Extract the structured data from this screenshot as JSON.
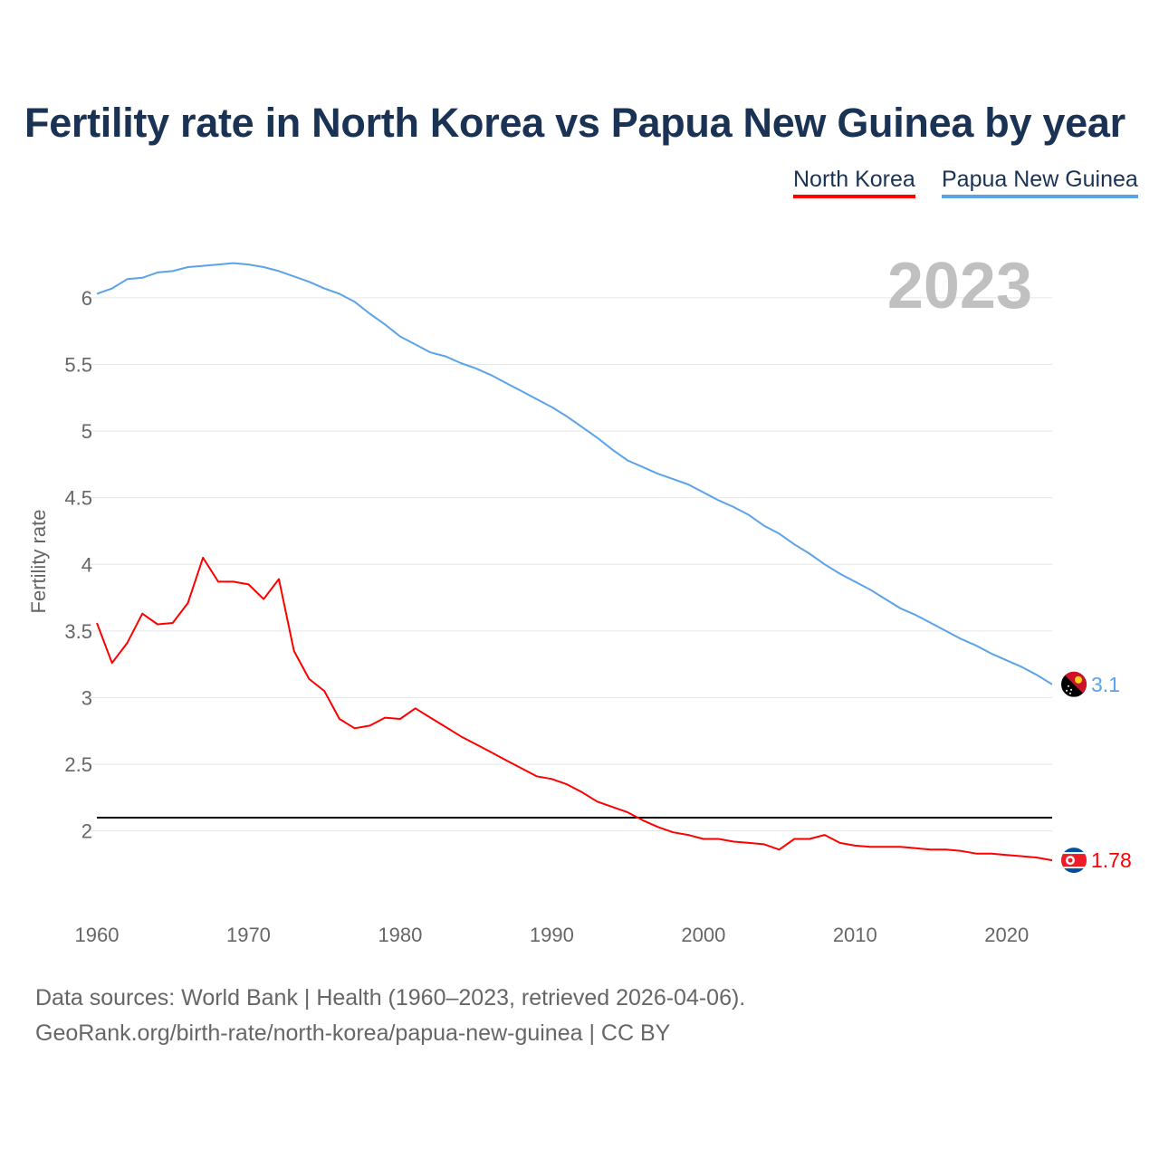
{
  "chart_data": {
    "type": "line",
    "title": "Fertility rate in North Korea vs Papua New Guinea by year",
    "ylabel": "Fertility rate",
    "xlabel": "",
    "year_label": "2023",
    "xlim": [
      1960,
      2023
    ],
    "ylim": [
      1.4,
      6.4
    ],
    "xticks": [
      1960,
      1970,
      1980,
      1990,
      2000,
      2010,
      2020
    ],
    "yticks": [
      2,
      2.5,
      3,
      3.5,
      4,
      4.5,
      5,
      5.5,
      6
    ],
    "grid": true,
    "legend_position": "top-right",
    "reference_line": 2.1,
    "x_start": 1960,
    "series": [
      {
        "name": "North Korea",
        "color": "#ff0000",
        "end_label": "1.78",
        "flag": "north-korea-flag",
        "values": [
          3.56,
          3.26,
          3.41,
          3.63,
          3.55,
          3.56,
          3.71,
          4.05,
          3.87,
          3.87,
          3.85,
          3.74,
          3.89,
          3.35,
          3.14,
          3.05,
          2.84,
          2.77,
          2.79,
          2.85,
          2.84,
          2.92,
          2.85,
          2.78,
          2.71,
          2.65,
          2.59,
          2.53,
          2.47,
          2.41,
          2.39,
          2.35,
          2.29,
          2.22,
          2.18,
          2.14,
          2.08,
          2.03,
          1.99,
          1.97,
          1.94,
          1.94,
          1.92,
          1.91,
          1.9,
          1.86,
          1.94,
          1.94,
          1.97,
          1.91,
          1.89,
          1.88,
          1.88,
          1.88,
          1.87,
          1.86,
          1.86,
          1.85,
          1.83,
          1.83,
          1.82,
          1.81,
          1.8,
          1.78
        ]
      },
      {
        "name": "Papua New Guinea",
        "color": "#5ba3e8",
        "end_label": "3.1",
        "flag": "papua-new-guinea-flag",
        "values": [
          6.03,
          6.07,
          6.14,
          6.15,
          6.19,
          6.2,
          6.23,
          6.24,
          6.25,
          6.26,
          6.25,
          6.23,
          6.2,
          6.16,
          6.12,
          6.07,
          6.03,
          5.97,
          5.88,
          5.8,
          5.71,
          5.65,
          5.59,
          5.56,
          5.51,
          5.47,
          5.42,
          5.36,
          5.3,
          5.24,
          5.18,
          5.11,
          5.03,
          4.95,
          4.86,
          4.78,
          4.73,
          4.68,
          4.64,
          4.6,
          4.54,
          4.48,
          4.43,
          4.37,
          4.29,
          4.23,
          4.15,
          4.08,
          4.0,
          3.93,
          3.87,
          3.81,
          3.74,
          3.67,
          3.62,
          3.56,
          3.5,
          3.44,
          3.39,
          3.33,
          3.28,
          3.23,
          3.17,
          3.1
        ]
      }
    ]
  },
  "sources": {
    "line1": "Data sources: World Bank | Health (1960–2023, retrieved 2026-04-06).",
    "line2": "GeoRank.org/birth-rate/north-korea/papua-new-guinea | CC BY"
  }
}
